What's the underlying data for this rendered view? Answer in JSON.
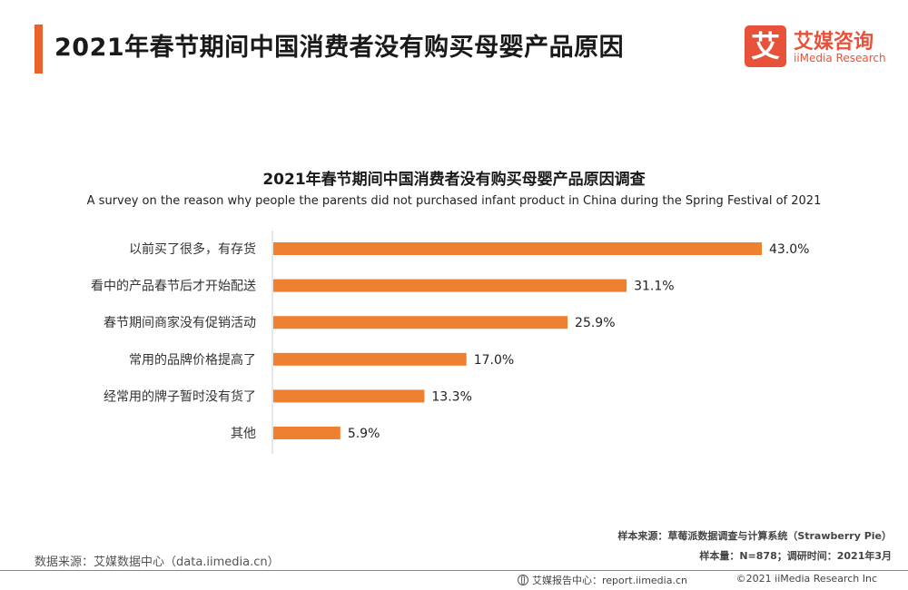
{
  "header": {
    "title": "2021年春节期间中国消费者没有购买母婴产品原因",
    "accent_color": "#E9622E"
  },
  "logo": {
    "mark": "艾",
    "name_cn": "艾媒咨询",
    "name_en": "iiMedia Research",
    "color": "#E8523A"
  },
  "chart_data": {
    "type": "bar",
    "orientation": "horizontal",
    "title": "2021年春节期间中国消费者没有购买母婴产品原因调查",
    "subtitle": "A survey on the reason why people the parents did not purchased infant product in China during the Spring Festival of 2021",
    "categories": [
      "以前买了很多，有存货",
      "看中的产品春节后才开始配送",
      "春节期间商家没有促销活动",
      "常用的品牌价格提高了",
      "经常用的牌子暂时没有货了",
      "其他"
    ],
    "values": [
      43.0,
      31.1,
      25.9,
      17.0,
      13.3,
      5.9
    ],
    "value_labels": [
      "43.0%",
      "31.1%",
      "25.9%",
      "17.0%",
      "13.3%",
      "5.9%"
    ],
    "unit": "%",
    "bar_color": "#EE8131",
    "xlim": [
      0,
      43
    ],
    "grid": false,
    "legend": "none"
  },
  "notes": {
    "sample_source": "样本来源：草莓派数据调查与计算系统（Strawberry Pie）",
    "sample_size": "样本量：N=878；调研时间：2021年3月"
  },
  "footer": {
    "data_source": "数据来源：艾媒数据中心（data.iimedia.cn）",
    "report_center": "艾媒报告中心：report.iimedia.cn",
    "copyright": "©2021  iiMedia Research  Inc"
  }
}
